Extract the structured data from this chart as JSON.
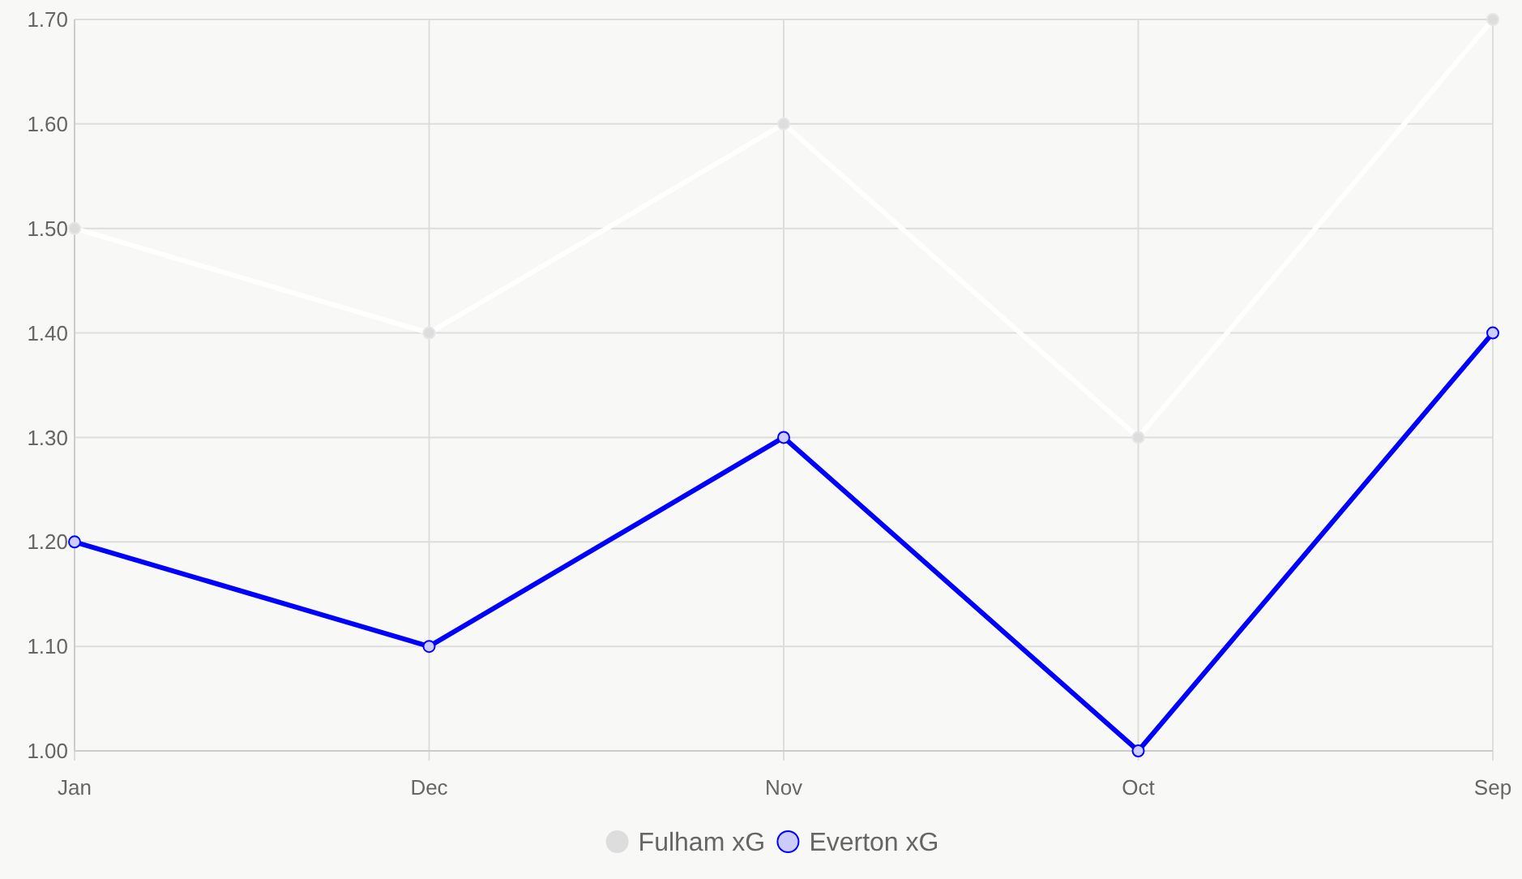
{
  "chart_data": {
    "type": "line",
    "categories": [
      "Jan",
      "Dec",
      "Nov",
      "Oct",
      "Sep"
    ],
    "series": [
      {
        "name": "Fulham xG",
        "color": "#ffffff",
        "values": [
          1.5,
          1.4,
          1.6,
          1.3,
          1.7
        ]
      },
      {
        "name": "Everton xG",
        "color": "#0000ff",
        "values": [
          1.2,
          1.1,
          1.3,
          1.0,
          1.4
        ]
      }
    ],
    "ylim": [
      1.0,
      1.7
    ],
    "yticks": [
      {
        "value": 1.0,
        "label": "1.00"
      },
      {
        "value": 1.1,
        "label": "1.10"
      },
      {
        "value": 1.2,
        "label": "1.20"
      },
      {
        "value": 1.3,
        "label": "1.30"
      },
      {
        "value": 1.4,
        "label": "1.40"
      },
      {
        "value": 1.5,
        "label": "1.50"
      },
      {
        "value": 1.6,
        "label": "1.60"
      },
      {
        "value": 1.7,
        "label": "1.70"
      }
    ],
    "grid": true,
    "legend": "bottom",
    "marker": "circle",
    "line_style": "solid"
  }
}
